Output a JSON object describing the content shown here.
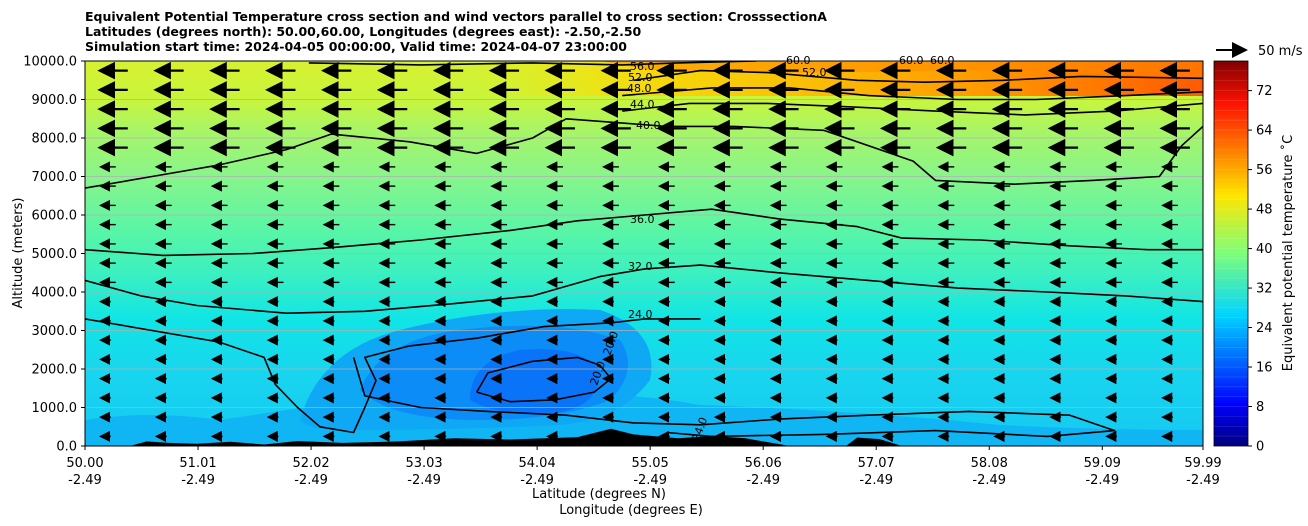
{
  "titles": [
    "Equivalent Potential Temperature cross section and wind vectors parallel to cross section: CrosssectionA",
    "Latitudes (degrees north): 50.00,60.00, Longitudes (degrees east): -2.50,-2.50",
    "Simulation start time: 2024-04-05 00:00:00, Valid time: 2024-04-07 23:00:00"
  ],
  "chart_data": {
    "type": "contourf_cross_section",
    "title": "Equivalent Potential Temperature cross section and wind vectors parallel to cross section: CrosssectionA",
    "ylabel": "Altitude (meters)",
    "xlabel_lat": "Latitude (degrees N)",
    "xlabel_lon": "Longitude (degrees E)",
    "ylim": [
      0,
      10000
    ],
    "xlim": [
      50.0,
      59.99
    ],
    "yticks": [
      0,
      1000,
      2000,
      3000,
      4000,
      5000,
      6000,
      7000,
      8000,
      9000,
      10000
    ],
    "ytick_labels": [
      "0.0",
      "1000.0",
      "2000.0",
      "3000.0",
      "4000.0",
      "5000.0",
      "6000.0",
      "7000.0",
      "8000.0",
      "9000.0",
      "10000.0"
    ],
    "xticks": [
      50.0,
      51.01,
      52.02,
      53.03,
      54.04,
      55.05,
      56.06,
      57.07,
      58.08,
      59.09,
      59.99
    ],
    "xtick_lat_labels": [
      "50.00",
      "51.01",
      "52.02",
      "53.03",
      "54.04",
      "55.05",
      "56.06",
      "57.07",
      "58.08",
      "59.09",
      "59.99"
    ],
    "xtick_lon_labels": [
      "-2.49",
      "-2.49",
      "-2.49",
      "-2.49",
      "-2.49",
      "-2.49",
      "-2.49",
      "-2.49",
      "-2.49",
      "-2.49",
      "-2.49"
    ],
    "grid": "horizontal",
    "colorbar": {
      "label": "Equivalent potential temperature ˚C",
      "min": 0,
      "max": 78,
      "ticks": [
        0,
        8,
        16,
        24,
        32,
        40,
        48,
        56,
        64,
        72
      ],
      "tick_labels": [
        "0",
        "8",
        "16",
        "24",
        "32",
        "40",
        "48",
        "56",
        "64",
        "72"
      ],
      "colormap": "jet"
    },
    "contour_labels": [
      "56.0",
      "52.0",
      "48.0",
      "44.0",
      "40.0",
      "36.0",
      "32.0",
      "24.0",
      "20.0",
      "20.0",
      "24.0",
      "52.0",
      "60.0",
      "60.0",
      "60.0"
    ],
    "contours": [
      {
        "level": 20,
        "points": [
          [
            53.5,
            1400
          ],
          [
            53.6,
            1900
          ],
          [
            54.0,
            2200
          ],
          [
            54.4,
            2300
          ],
          [
            54.6,
            2100
          ],
          [
            54.7,
            1750
          ],
          [
            54.55,
            1400
          ],
          [
            54.2,
            1200
          ],
          [
            53.8,
            1150
          ],
          [
            53.5,
            1400
          ]
        ]
      },
      {
        "level": 24,
        "points": [
          [
            50.0,
            3300
          ],
          [
            50.6,
            3000
          ],
          [
            51.2,
            2700
          ],
          [
            51.6,
            2300
          ],
          [
            51.7,
            1600
          ],
          [
            51.9,
            1000
          ],
          [
            52.1,
            500
          ],
          [
            52.4,
            350
          ],
          [
            52.5,
            1000
          ],
          [
            52.6,
            1700
          ],
          [
            52.5,
            2300
          ],
          [
            52.9,
            2600
          ],
          [
            53.5,
            2800
          ],
          [
            54.1,
            3100
          ],
          [
            54.7,
            3200
          ],
          [
            55.0,
            3300
          ],
          [
            55.5,
            3300
          ]
        ]
      },
      {
        "level": 24,
        "points": [
          [
            52.4,
            2300
          ],
          [
            52.5,
            1300
          ],
          [
            53.0,
            1000
          ],
          [
            53.6,
            900
          ],
          [
            54.3,
            800
          ],
          [
            54.9,
            600
          ],
          [
            55.5,
            550
          ],
          [
            56.2,
            700
          ],
          [
            57.0,
            800
          ],
          [
            57.9,
            900
          ],
          [
            58.8,
            800
          ],
          [
            59.2,
            400
          ],
          [
            58.6,
            250
          ],
          [
            57.6,
            400
          ],
          [
            56.6,
            300
          ],
          [
            55.6,
            250
          ],
          [
            55.2,
            350
          ]
        ]
      },
      {
        "level": 32,
        "points": [
          [
            50.0,
            4300
          ],
          [
            50.5,
            3900
          ],
          [
            51.0,
            3650
          ],
          [
            51.8,
            3450
          ],
          [
            52.5,
            3500
          ],
          [
            53.3,
            3700
          ],
          [
            54.0,
            3900
          ],
          [
            54.6,
            4400
          ],
          [
            55.0,
            4600
          ],
          [
            55.5,
            4700
          ],
          [
            56.2,
            4500
          ],
          [
            57.0,
            4300
          ],
          [
            57.8,
            4100
          ],
          [
            58.6,
            4000
          ],
          [
            59.3,
            3900
          ],
          [
            59.99,
            3750
          ]
        ]
      },
      {
        "level": 36,
        "points": [
          [
            50.0,
            5100
          ],
          [
            50.7,
            4950
          ],
          [
            51.5,
            5000
          ],
          [
            52.2,
            5150
          ],
          [
            53.0,
            5350
          ],
          [
            53.8,
            5600
          ],
          [
            54.4,
            5850
          ],
          [
            55.0,
            6000
          ],
          [
            55.6,
            6150
          ],
          [
            56.2,
            5900
          ],
          [
            56.9,
            5700
          ],
          [
            57.3,
            5400
          ],
          [
            58.0,
            5350
          ],
          [
            58.8,
            5200
          ],
          [
            59.5,
            5100
          ],
          [
            59.99,
            5100
          ]
        ]
      },
      {
        "level": 40,
        "points": [
          [
            50.0,
            6700
          ],
          [
            50.6,
            7000
          ],
          [
            51.2,
            7300
          ],
          [
            51.8,
            7700
          ],
          [
            52.2,
            8100
          ],
          [
            52.9,
            7900
          ],
          [
            53.5,
            7600
          ],
          [
            54.0,
            8000
          ],
          [
            54.3,
            8500
          ],
          [
            55.2,
            8300
          ],
          [
            55.8,
            8300
          ],
          [
            56.6,
            8200
          ],
          [
            57.4,
            7400
          ],
          [
            57.6,
            6900
          ],
          [
            58.3,
            6800
          ],
          [
            59.0,
            6900
          ],
          [
            59.6,
            7000
          ],
          [
            59.8,
            7800
          ],
          [
            59.99,
            8300
          ]
        ]
      },
      {
        "level": 44,
        "points": [
          [
            54.8,
            8700
          ],
          [
            55.4,
            8900
          ],
          [
            56.1,
            8900
          ],
          [
            56.9,
            8800
          ],
          [
            57.6,
            8700
          ],
          [
            58.4,
            8600
          ],
          [
            59.2,
            8700
          ],
          [
            59.99,
            8900
          ]
        ]
      },
      {
        "level": 48,
        "points": [
          [
            54.8,
            9100
          ],
          [
            55.6,
            9300
          ],
          [
            56.3,
            9300
          ],
          [
            57.0,
            9100
          ],
          [
            57.8,
            9000
          ],
          [
            58.5,
            9000
          ],
          [
            59.3,
            9100
          ],
          [
            59.99,
            9200
          ]
        ]
      },
      {
        "level": 52,
        "points": [
          [
            54.9,
            9500
          ],
          [
            55.5,
            9750
          ],
          [
            56.1,
            9700
          ],
          [
            56.9,
            9500
          ],
          [
            57.5,
            9450
          ],
          [
            58.2,
            9500
          ],
          [
            58.9,
            9600
          ],
          [
            59.99,
            9550
          ]
        ]
      },
      {
        "level": 56,
        "points": [
          [
            52.0,
            9950
          ],
          [
            53.0,
            9900
          ],
          [
            54.0,
            9950
          ],
          [
            54.8,
            9900
          ],
          [
            55.3,
            9950
          ],
          [
            56.0,
            10000
          ]
        ]
      }
    ],
    "terrain": [
      [
        50.4,
        0
      ],
      [
        50.55,
        120
      ],
      [
        50.75,
        80
      ],
      [
        51.0,
        60
      ],
      [
        51.3,
        110
      ],
      [
        51.6,
        40
      ],
      [
        51.9,
        130
      ],
      [
        52.3,
        80
      ],
      [
        52.8,
        120
      ],
      [
        53.3,
        200
      ],
      [
        53.8,
        170
      ],
      [
        54.4,
        230
      ],
      [
        54.7,
        450
      ],
      [
        54.9,
        300
      ],
      [
        55.3,
        200
      ],
      [
        55.6,
        260
      ],
      [
        55.9,
        200
      ],
      [
        56.3,
        0
      ],
      [
        56.8,
        0
      ],
      [
        56.9,
        220
      ],
      [
        57.1,
        180
      ],
      [
        57.3,
        0
      ],
      [
        57.6,
        0
      ]
    ],
    "wind_vector_reference": {
      "speed": 50,
      "label": "50 m/s",
      "direction": "right"
    },
    "wind_vectors_direction": "southward (leftward, parallel to section)"
  }
}
